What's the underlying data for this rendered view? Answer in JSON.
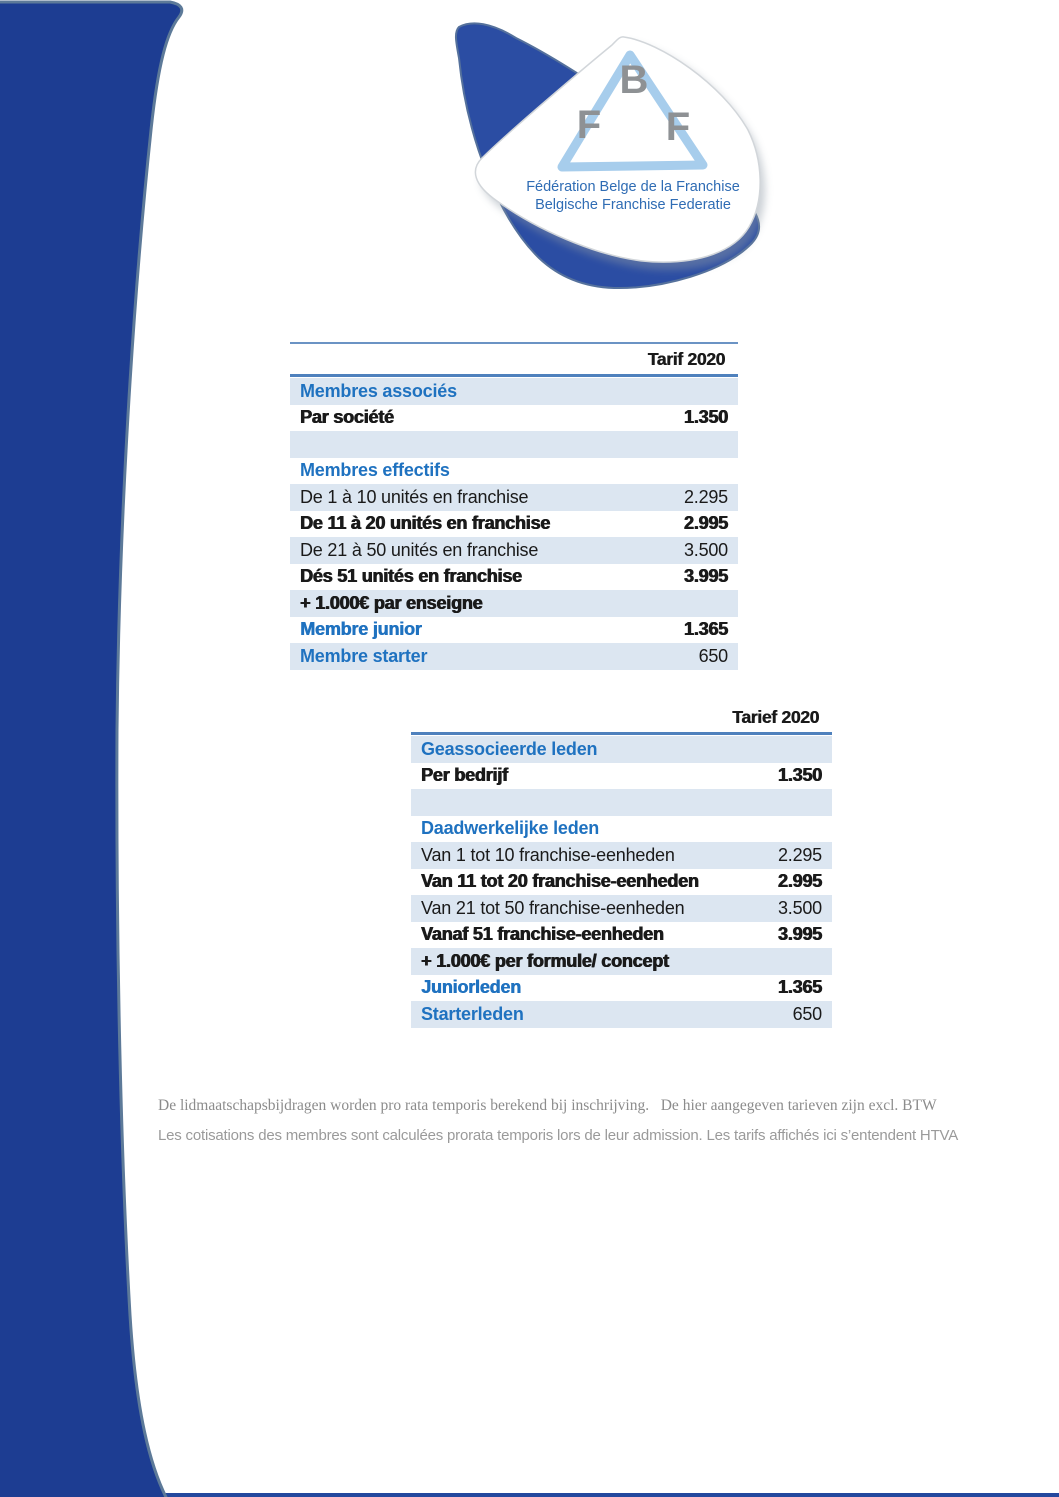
{
  "logo": {
    "letter_b": "B",
    "letter_f_left": "F",
    "letter_f_right": "F",
    "line1": "Fédération Belge de la Franchise",
    "line2": "Belgische Franchise Federatie"
  },
  "table_fr": {
    "header": "Tarif 2020",
    "rows": [
      {
        "label": "Membres associés",
        "value": "",
        "bg": "blue",
        "section": true,
        "heavy": false,
        "value_heavy": false
      },
      {
        "label": "Par société",
        "value": "1.350",
        "bg": "white",
        "section": false,
        "heavy": true,
        "value_heavy": true
      },
      {
        "label": "",
        "value": "",
        "bg": "blue",
        "section": false,
        "heavy": false,
        "value_heavy": false
      },
      {
        "label": "Membres effectifs",
        "value": "",
        "bg": "white",
        "section": true,
        "heavy": false,
        "value_heavy": false
      },
      {
        "label": "De 1 à 10 unités en franchise",
        "value": "2.295",
        "bg": "blue",
        "section": false,
        "heavy": false,
        "value_heavy": false
      },
      {
        "label": "De 11 à 20 unités en franchise",
        "value": "2.995",
        "bg": "white",
        "section": false,
        "heavy": true,
        "value_heavy": true
      },
      {
        "label": "De 21 à 50 unités en franchise",
        "value": "3.500",
        "bg": "blue",
        "section": false,
        "heavy": false,
        "value_heavy": false
      },
      {
        "label": "Dés 51 unités en franchise",
        "value": "3.995",
        "bg": "white",
        "section": false,
        "heavy": true,
        "value_heavy": true
      },
      {
        "label": "+ 1.000€ par enseigne",
        "value": "",
        "bg": "blue",
        "section": false,
        "heavy": true,
        "value_heavy": false
      },
      {
        "label": "Membre junior",
        "value": "1.365",
        "bg": "white",
        "section": true,
        "heavy": true,
        "value_heavy": true
      },
      {
        "label": "Membre starter",
        "value": "650",
        "bg": "blue",
        "section": true,
        "heavy": false,
        "value_heavy": false
      }
    ]
  },
  "table_nl": {
    "header": "Tarief 2020",
    "rows": [
      {
        "label": "Geassocieerde leden",
        "value": "",
        "bg": "blue",
        "section": true,
        "heavy": false,
        "value_heavy": false
      },
      {
        "label": "Per bedrijf",
        "value": "1.350",
        "bg": "white",
        "section": false,
        "heavy": true,
        "value_heavy": true
      },
      {
        "label": "",
        "value": "",
        "bg": "blue",
        "section": false,
        "heavy": false,
        "value_heavy": false
      },
      {
        "label": "Daadwerkelijke leden",
        "value": "",
        "bg": "white",
        "section": true,
        "heavy": false,
        "value_heavy": false
      },
      {
        "label": "Van 1 tot 10 franchise-eenheden",
        "value": "2.295",
        "bg": "blue",
        "section": false,
        "heavy": false,
        "value_heavy": false
      },
      {
        "label": "Van 11 tot 20 franchise-eenheden",
        "value": "2.995",
        "bg": "white",
        "section": false,
        "heavy": true,
        "value_heavy": true
      },
      {
        "label": "Van 21 tot 50 franchise-eenheden",
        "value": "3.500",
        "bg": "blue",
        "section": false,
        "heavy": false,
        "value_heavy": false
      },
      {
        "label": "Vanaf 51 franchise-eenheden",
        "value": "3.995",
        "bg": "white",
        "section": false,
        "heavy": true,
        "value_heavy": true
      },
      {
        "label": "+ 1.000€ per formule/ concept",
        "value": "",
        "bg": "blue",
        "section": false,
        "heavy": true,
        "value_heavy": false
      },
      {
        "label": "Juniorleden",
        "value": "1.365",
        "bg": "white",
        "section": true,
        "heavy": true,
        "value_heavy": true
      },
      {
        "label": "Starterleden",
        "value": "650",
        "bg": "blue",
        "section": true,
        "heavy": false,
        "value_heavy": false
      }
    ]
  },
  "footer": {
    "line_nl": "De lidmaatschapsbijdragen worden pro rata temporis berekend bij inschrijving.   De hier aangegeven tarieven zijn excl. BTW",
    "line_fr": "Les cotisations des membres sont calculées prorata temporis lors de leur admission. Les tarifs affichés ici s’entendent HTVA"
  },
  "colors": {
    "band_blue": "#1d3d92",
    "band_edge": "#5d7a99",
    "logo_back_blue": "#2b4da3",
    "logo_triangle": "#a7cdec",
    "logo_letters": "#8e9194",
    "logo_text_blue": "#2f6cb4",
    "row_light_blue": "#dce6f1",
    "rule_blue": "#4f81bd",
    "rule_thin": "#6b93c4",
    "section_blue": "#1f72c0",
    "text_black": "#1a1a1a",
    "footer_gray": "#8c8c8c",
    "bottom_line_blue": "#24489e"
  }
}
